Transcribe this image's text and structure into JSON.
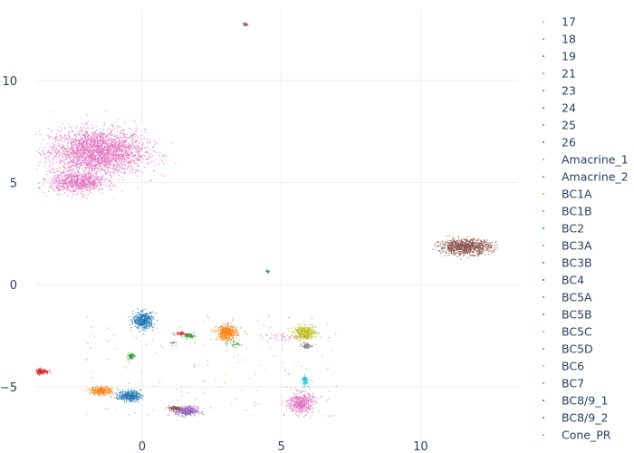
{
  "chart_data": {
    "type": "scatter",
    "title": "",
    "xlabel": "",
    "ylabel": "",
    "xlim": [
      -3.8,
      13.5
    ],
    "ylim": [
      -7.8,
      13.5
    ],
    "x_ticks": [
      0,
      5,
      10
    ],
    "y_ticks": [
      -5,
      0,
      5,
      10
    ],
    "grid": true,
    "legend_position": "right",
    "legend": [
      {
        "name": "17",
        "color": "#bcbd22"
      },
      {
        "name": "18",
        "color": "#17becf"
      },
      {
        "name": "19",
        "color": "#1f77b4"
      },
      {
        "name": "21",
        "color": "#ff7f0e"
      },
      {
        "name": "23",
        "color": "#2ca02c"
      },
      {
        "name": "24",
        "color": "#d62728"
      },
      {
        "name": "25",
        "color": "#9467bd"
      },
      {
        "name": "26",
        "color": "#8c564b"
      },
      {
        "name": "Amacrine_1",
        "color": "#e377c2"
      },
      {
        "name": "Amacrine_2",
        "color": "#7f7f7f"
      },
      {
        "name": "BC1A",
        "color": "#bcbd22"
      },
      {
        "name": "BC1B",
        "color": "#17becf"
      },
      {
        "name": "BC2",
        "color": "#1f77b4"
      },
      {
        "name": "BC3A",
        "color": "#ff7f0e"
      },
      {
        "name": "BC3B",
        "color": "#2ca02c"
      },
      {
        "name": "BC4",
        "color": "#d62728"
      },
      {
        "name": "BC5A",
        "color": "#9467bd"
      },
      {
        "name": "BC5B",
        "color": "#8c564b"
      },
      {
        "name": "BC5C",
        "color": "#e377c2"
      },
      {
        "name": "BC5D",
        "color": "#7f7f7f"
      },
      {
        "name": "BC6",
        "color": "#bcbd22"
      },
      {
        "name": "BC7",
        "color": "#17becf"
      },
      {
        "name": "BC8/9_1",
        "color": "#1f77b4"
      },
      {
        "name": "BC8/9_2",
        "color": "#d62728"
      },
      {
        "name": "Cone_PR",
        "color": "#e377c2"
      }
    ],
    "clusters": [
      {
        "color": "#e377c2",
        "x": -1.6,
        "y": 6.5,
        "sx": 0.85,
        "sy": 0.55,
        "n": 2600
      },
      {
        "color": "#e377c2",
        "x": -2.3,
        "y": 5.0,
        "sx": 0.5,
        "sy": 0.25,
        "n": 800
      },
      {
        "color": "#8c564b",
        "x": 11.6,
        "y": 1.85,
        "sx": 0.45,
        "sy": 0.18,
        "n": 900
      },
      {
        "color": "#1f77b4",
        "x": 0.05,
        "y": -1.75,
        "sx": 0.18,
        "sy": 0.2,
        "n": 420
      },
      {
        "color": "#ff7f0e",
        "x": 3.05,
        "y": -2.35,
        "sx": 0.18,
        "sy": 0.18,
        "n": 380
      },
      {
        "color": "#bcbd22",
        "x": 5.85,
        "y": -2.35,
        "sx": 0.2,
        "sy": 0.16,
        "n": 360
      },
      {
        "color": "#e377c2",
        "x": 5.7,
        "y": -5.8,
        "sx": 0.22,
        "sy": 0.25,
        "n": 460
      },
      {
        "color": "#17becf",
        "x": 5.85,
        "y": -4.7,
        "sx": 0.06,
        "sy": 0.12,
        "n": 70
      },
      {
        "color": "#7f7f7f",
        "x": 5.9,
        "y": -3.0,
        "sx": 0.08,
        "sy": 0.06,
        "n": 70
      },
      {
        "color": "#1f77b4",
        "x": -0.45,
        "y": -5.45,
        "sx": 0.2,
        "sy": 0.13,
        "n": 320
      },
      {
        "color": "#ff7f0e",
        "x": -1.45,
        "y": -5.2,
        "sx": 0.2,
        "sy": 0.1,
        "n": 240
      },
      {
        "color": "#9467bd",
        "x": 1.6,
        "y": -6.2,
        "sx": 0.2,
        "sy": 0.12,
        "n": 300
      },
      {
        "color": "#8c564b",
        "x": 1.2,
        "y": -6.05,
        "sx": 0.12,
        "sy": 0.06,
        "n": 100
      },
      {
        "color": "#d62728",
        "x": -3.6,
        "y": -4.25,
        "sx": 0.12,
        "sy": 0.07,
        "n": 120
      },
      {
        "color": "#2ca02c",
        "x": -0.4,
        "y": -3.5,
        "sx": 0.06,
        "sy": 0.08,
        "n": 60
      },
      {
        "color": "#2ca02c",
        "x": 1.7,
        "y": -2.5,
        "sx": 0.1,
        "sy": 0.05,
        "n": 60
      },
      {
        "color": "#d62728",
        "x": 1.4,
        "y": -2.4,
        "sx": 0.12,
        "sy": 0.05,
        "n": 40
      },
      {
        "color": "#8c564b",
        "x": 3.7,
        "y": 12.75,
        "sx": 0.04,
        "sy": 0.04,
        "n": 25
      },
      {
        "color": "#2ca02c",
        "x": 4.5,
        "y": 0.65,
        "sx": 0.03,
        "sy": 0.04,
        "n": 15
      },
      {
        "color": "#2ca02c",
        "x": 3.3,
        "y": -2.9,
        "sx": 0.15,
        "sy": 0.08,
        "n": 30
      },
      {
        "color": "#e377c2",
        "x": 5.0,
        "y": -2.6,
        "sx": 0.35,
        "sy": 0.12,
        "n": 40
      },
      {
        "color": "#7f7f7f",
        "x": 1.1,
        "y": -2.85,
        "sx": 0.05,
        "sy": 0.05,
        "n": 15
      }
    ]
  }
}
